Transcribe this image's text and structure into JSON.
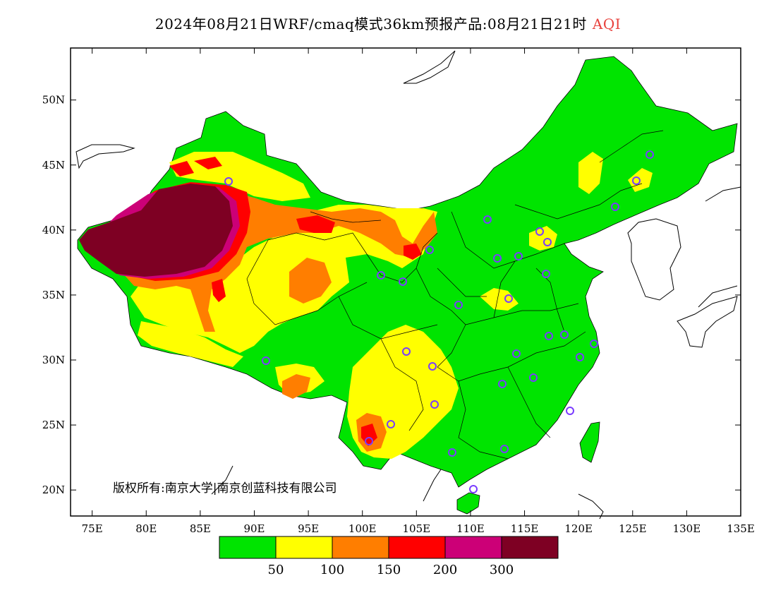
{
  "title": {
    "main": "2024年08月21日WRF/cmaq模式36km预报产品:08月21日21时",
    "variable": "AQI"
  },
  "copyright": "版权所有:南京大学|南京创蓝科技有限公司",
  "axes": {
    "lon_ticks": [
      "75E",
      "80E",
      "85E",
      "90E",
      "95E",
      "100E",
      "105E",
      "110E",
      "115E",
      "120E",
      "125E",
      "130E",
      "135E"
    ],
    "lat_ticks": [
      "20N",
      "25N",
      "30N",
      "35N",
      "40N",
      "45N",
      "50N"
    ],
    "lon_range": [
      73,
      135
    ],
    "lat_range": [
      18,
      54
    ]
  },
  "colorbar": {
    "colors": [
      "#00e400",
      "#ffff00",
      "#ff7e00",
      "#ff0000",
      "#cc0077",
      "#7e0023"
    ],
    "labels": [
      "50",
      "100",
      "150",
      "200",
      "300"
    ]
  },
  "colors": {
    "good": "#00e400",
    "moderate": "#ffff00",
    "usg": "#ff7e00",
    "unhealthy": "#ff0000",
    "very_unhealthy": "#cc0077",
    "hazardous": "#7e0023",
    "station": "#7a3cff"
  }
}
